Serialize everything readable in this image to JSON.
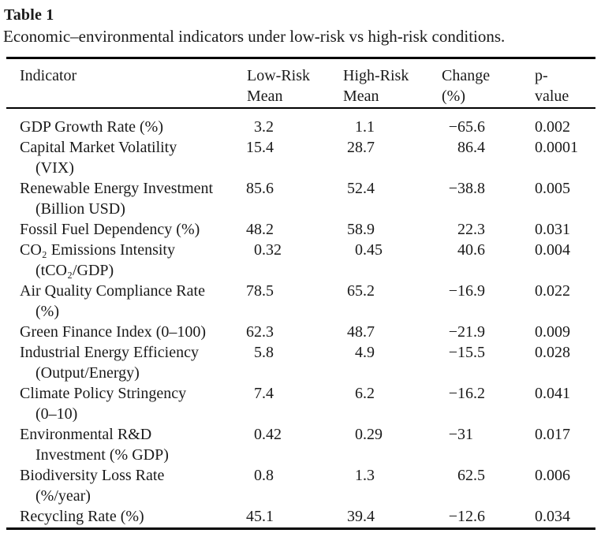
{
  "title": "Table 1",
  "caption": "Economic–environmental indicators under low-risk vs high-risk conditions.",
  "colors": {
    "background": "#ffffff",
    "text": "#1a1a1a",
    "rule": "#000000"
  },
  "table": {
    "columns": [
      {
        "lines": [
          "Indicator"
        ]
      },
      {
        "lines": [
          "Low-Risk",
          "Mean"
        ]
      },
      {
        "lines": [
          "High-Risk",
          "Mean"
        ]
      },
      {
        "lines": [
          "Change",
          "(%)"
        ]
      },
      {
        "lines": [
          "p-",
          "value"
        ]
      }
    ],
    "rows": [
      {
        "indicator": [
          "GDP Growth Rate (%)"
        ],
        "low": "3.2",
        "high": "1.1",
        "change": "−65.6",
        "p": "0.002"
      },
      {
        "indicator": [
          "Capital Market Volatility",
          "(VIX)"
        ],
        "low": "15.4",
        "high": "28.7",
        "change": "86.4",
        "p": "0.0001"
      },
      {
        "indicator": [
          "Renewable Energy Investment",
          "(Billion USD)"
        ],
        "low": "85.6",
        "high": "52.4",
        "change": "−38.8",
        "p": "0.005"
      },
      {
        "indicator": [
          "Fossil Fuel Dependency (%)"
        ],
        "low": "48.2",
        "high": "58.9",
        "change": "22.3",
        "p": "0.031"
      },
      {
        "indicator": [
          "CO₂ Emissions Intensity",
          "(tCO₂/GDP)"
        ],
        "low": "0.32",
        "high": "0.45",
        "change": "40.6",
        "p": "0.004"
      },
      {
        "indicator": [
          "Air Quality Compliance Rate",
          "(%)"
        ],
        "low": "78.5",
        "high": "65.2",
        "change": "−16.9",
        "p": "0.022"
      },
      {
        "indicator": [
          "Green Finance Index (0–100)"
        ],
        "low": "62.3",
        "high": "48.7",
        "change": "−21.9",
        "p": "0.009"
      },
      {
        "indicator": [
          "Industrial Energy Efficiency",
          "(Output/Energy)"
        ],
        "low": "5.8",
        "high": "4.9",
        "change": "−15.5",
        "p": "0.028"
      },
      {
        "indicator": [
          "Climate Policy Stringency",
          "(0–10)"
        ],
        "low": "7.4",
        "high": "6.2",
        "change": "−16.2",
        "p": "0.041"
      },
      {
        "indicator": [
          "Environmental R&D",
          "Investment (% GDP)"
        ],
        "low": "0.42",
        "high": "0.29",
        "change": "−31",
        "p": "0.017"
      },
      {
        "indicator": [
          "Biodiversity Loss Rate",
          "(%/year)"
        ],
        "low": "0.8",
        "high": "1.3",
        "change": "62.5",
        "p": "0.006"
      },
      {
        "indicator": [
          "Recycling Rate (%)"
        ],
        "low": "45.1",
        "high": "39.4",
        "change": "−12.6",
        "p": "0.034"
      }
    ]
  }
}
